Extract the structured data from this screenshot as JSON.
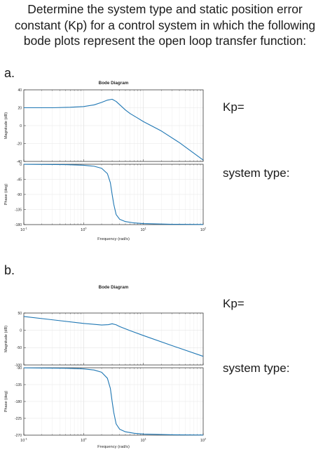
{
  "question": {
    "lines": [
      "Determine the system type and static position error",
      "constant (Kp) for a control system in which the following",
      "bode plots represent the open loop transfer function:"
    ]
  },
  "parts": [
    {
      "label": "a.",
      "answer_kp": "Kp=",
      "answer_type": "system type:"
    },
    {
      "label": "b.",
      "answer_kp": "Kp=",
      "answer_type": "system type:"
    }
  ],
  "colors": {
    "curve": "#1f77b4",
    "axis": "#262626",
    "grid": "#e6e6e6"
  },
  "chart_data": [
    {
      "type": "line",
      "title": "Bode Diagram",
      "xlabel": "Frequency (rad/s)",
      "x_scale": "log",
      "xlim": [
        0.1,
        100
      ],
      "xticks": [
        0.1,
        1,
        10,
        100
      ],
      "grid": true,
      "magnitude": {
        "ylabel": "Magnitude (dB)",
        "ylim": [
          -40,
          40
        ],
        "yticks": [
          40,
          20,
          0,
          -20,
          -40
        ],
        "series": [
          {
            "x": [
              0.1,
              0.3,
              0.6,
              1,
              1.5,
              2,
              2.5,
              3,
              3.5,
              4,
              5,
              6,
              8,
              10,
              20,
              40,
              100
            ],
            "y": [
              20,
              20,
              20.5,
              21.3,
              23.2,
              26,
              28.5,
              29.5,
              27,
              23.5,
              17.5,
              13.5,
              8.5,
              4.5,
              -6,
              -19,
              -38.5
            ]
          }
        ]
      },
      "phase": {
        "ylabel": "Phase (deg)",
        "ylim": [
          -180,
          0
        ],
        "yticks": [
          0,
          -45,
          -90,
          -135,
          -180
        ],
        "series": [
          {
            "x": [
              0.1,
              0.5,
              1,
              1.5,
              2,
              2.5,
              2.8,
              3,
              3.2,
              3.5,
              4,
              5,
              7,
              10,
              30,
              100
            ],
            "y": [
              -0.2,
              -1.2,
              -3,
              -6,
              -12,
              -28,
              -55,
              -90,
              -120,
              -150,
              -164,
              -171,
              -175,
              -177,
              -179,
              -179.7
            ]
          }
        ]
      }
    },
    {
      "type": "line",
      "title": "Bode Diagram",
      "xlabel": "Frequency (rad/s)",
      "x_scale": "log",
      "xlim": [
        0.1,
        100
      ],
      "xticks": [
        0.1,
        1,
        10,
        100
      ],
      "grid": true,
      "magnitude": {
        "ylabel": "Magnitude (dB)",
        "ylim": [
          -100,
          50
        ],
        "yticks": [
          50,
          0,
          -50,
          -100
        ],
        "series": [
          {
            "x": [
              0.1,
              0.3,
              1,
              2,
              2.6,
              3,
              3.5,
              4,
              6,
              10,
              30,
              100
            ],
            "y": [
              40,
              30.5,
              20,
              15.5,
              16.5,
              19,
              16,
              11,
              -1,
              -15,
              -44,
              -75
            ]
          }
        ]
      },
      "phase": {
        "ylabel": "Phase (deg)",
        "ylim": [
          -270,
          -90
        ],
        "yticks": [
          -90,
          -135,
          -180,
          -225,
          -270
        ],
        "series": [
          {
            "x": [
              0.1,
              0.5,
              1,
              1.5,
              2,
              2.5,
              2.8,
              3,
              3.2,
              3.5,
              4,
              5,
              7,
              10,
              30,
              100
            ],
            "y": [
              -90.2,
              -91.2,
              -93,
              -96,
              -102,
              -118,
              -145,
              -180,
              -210,
              -240,
              -254,
              -261,
              -265,
              -267,
              -269,
              -269.7
            ]
          }
        ]
      }
    }
  ]
}
